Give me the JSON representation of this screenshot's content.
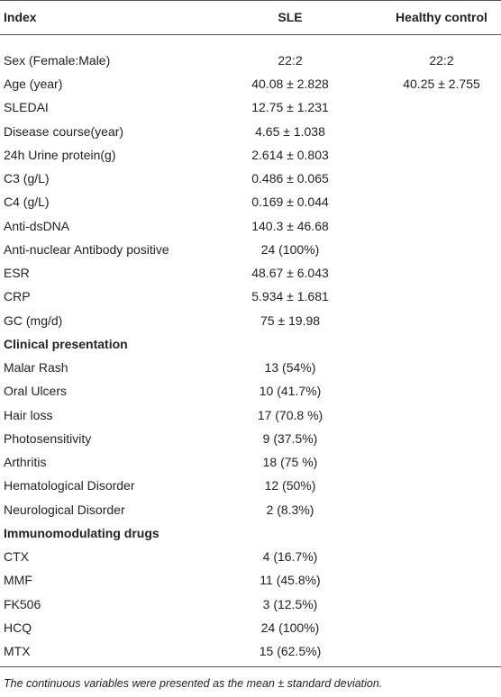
{
  "table": {
    "columns": [
      "Index",
      "SLE",
      "Healthy control"
    ],
    "rows": [
      [
        "Sex (Female:Male)",
        "22:2",
        "22:2"
      ],
      [
        "Age (year)",
        "40.08 ± 2.828",
        "40.25 ± 2.755"
      ],
      [
        "SLEDAI",
        "12.75 ± 1.231"
      ],
      [
        "Disease course(year)",
        "4.65 ± 1.038"
      ],
      [
        "24h Urine protein(g)",
        "2.614 ± 0.803"
      ],
      [
        "C3 (g/L)",
        "0.486 ± 0.065"
      ],
      [
        "C4 (g/L)",
        "0.169 ± 0.044"
      ],
      [
        "Anti-dsDNA",
        "140.3 ± 46.68"
      ],
      [
        "Anti-nuclear Antibody positive",
        "24 (100%)"
      ],
      [
        "ESR",
        "48.67 ± 6.043"
      ],
      [
        "CRP",
        "5.934 ± 1.681"
      ],
      [
        "GC (mg/d)",
        "75 ± 19.98"
      ],
      [
        "Clinical presentation"
      ],
      [
        "Malar Rash",
        "13 (54%)"
      ],
      [
        "Oral Ulcers",
        "10 (41.7%)"
      ],
      [
        "Hair loss",
        "17 (70.8 %)"
      ],
      [
        "Photosensitivity",
        "9 (37.5%)"
      ],
      [
        "Arthritis",
        "18 (75 %)"
      ],
      [
        "Hematological Disorder",
        "12 (50%)"
      ],
      [
        "Neurological Disorder",
        "2 (8.3%)"
      ],
      [
        "Immunomodulating drugs"
      ],
      [
        "CTX",
        "4 (16.7%)"
      ],
      [
        "MMF",
        "11 (45.8%)"
      ],
      [
        "FK506",
        "3 (12.5%)"
      ],
      [
        "HCQ",
        "24 (100%)"
      ],
      [
        "MTX",
        "15 (62.5%)"
      ]
    ],
    "footnote": "The continuous variables were presented as the mean ± standard deviation."
  }
}
